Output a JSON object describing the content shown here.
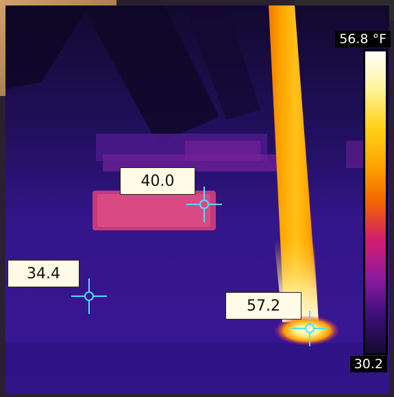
{
  "color_scale": {
    "max_label": "56.8 °F",
    "min_label": "30.2",
    "colors": [
      "#ffffff",
      "#fff39a",
      "#ffd21a",
      "#ffa600",
      "#f06400",
      "#d21c6e",
      "#8e1a9e",
      "#3c0f78",
      "#140a32"
    ]
  },
  "spot_readings": [
    {
      "value": "40.0"
    },
    {
      "value": "34.4"
    },
    {
      "value": "57.2"
    }
  ],
  "crosshair_color": "#55ddff",
  "icons": [
    "crosshair-icon"
  ]
}
